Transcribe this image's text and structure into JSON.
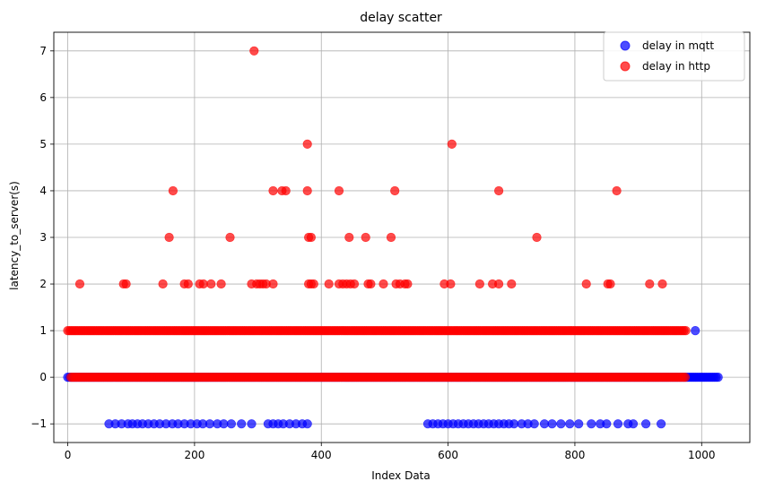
{
  "chart_data": {
    "type": "scatter",
    "title": "delay scatter",
    "xlabel": "Index Data",
    "ylabel": "latency_to_server(s)",
    "xlim": [
      -22,
      1076
    ],
    "ylim": [
      -1.4,
      7.4
    ],
    "xticks": [
      0,
      200,
      400,
      600,
      800,
      1000
    ],
    "yticks": [
      -1,
      0,
      1,
      2,
      3,
      4,
      5,
      6,
      7
    ],
    "grid": true,
    "legend_position": "top-right",
    "series": [
      {
        "name": "delay in mqtt",
        "color": "#0000ff",
        "alpha": 0.7,
        "runs": [
          {
            "from": 0,
            "to": 1026,
            "step": 3,
            "y": 0
          }
        ],
        "points": [
          {
            "x": 65,
            "y": -1
          },
          {
            "x": 75,
            "y": -1
          },
          {
            "x": 85,
            "y": -1
          },
          {
            "x": 95,
            "y": -1
          },
          {
            "x": 102,
            "y": -1
          },
          {
            "x": 110,
            "y": -1
          },
          {
            "x": 118,
            "y": -1
          },
          {
            "x": 127,
            "y": -1
          },
          {
            "x": 136,
            "y": -1
          },
          {
            "x": 145,
            "y": -1
          },
          {
            "x": 155,
            "y": -1
          },
          {
            "x": 165,
            "y": -1
          },
          {
            "x": 174,
            "y": -1
          },
          {
            "x": 184,
            "y": -1
          },
          {
            "x": 194,
            "y": -1
          },
          {
            "x": 204,
            "y": -1
          },
          {
            "x": 213,
            "y": -1
          },
          {
            "x": 224,
            "y": -1
          },
          {
            "x": 236,
            "y": -1
          },
          {
            "x": 246,
            "y": -1
          },
          {
            "x": 258,
            "y": -1
          },
          {
            "x": 274,
            "y": -1
          },
          {
            "x": 290,
            "y": -1
          },
          {
            "x": 316,
            "y": -1
          },
          {
            "x": 324,
            "y": -1
          },
          {
            "x": 332,
            "y": -1
          },
          {
            "x": 340,
            "y": -1
          },
          {
            "x": 350,
            "y": -1
          },
          {
            "x": 360,
            "y": -1
          },
          {
            "x": 370,
            "y": -1
          },
          {
            "x": 378,
            "y": -1
          },
          {
            "x": 568,
            "y": -1
          },
          {
            "x": 576,
            "y": -1
          },
          {
            "x": 584,
            "y": -1
          },
          {
            "x": 592,
            "y": -1
          },
          {
            "x": 600,
            "y": -1
          },
          {
            "x": 608,
            "y": -1
          },
          {
            "x": 616,
            "y": -1
          },
          {
            "x": 624,
            "y": -1
          },
          {
            "x": 632,
            "y": -1
          },
          {
            "x": 640,
            "y": -1
          },
          {
            "x": 648,
            "y": -1
          },
          {
            "x": 656,
            "y": -1
          },
          {
            "x": 664,
            "y": -1
          },
          {
            "x": 672,
            "y": -1
          },
          {
            "x": 680,
            "y": -1
          },
          {
            "x": 688,
            "y": -1
          },
          {
            "x": 696,
            "y": -1
          },
          {
            "x": 704,
            "y": -1
          },
          {
            "x": 716,
            "y": -1
          },
          {
            "x": 726,
            "y": -1
          },
          {
            "x": 736,
            "y": -1
          },
          {
            "x": 752,
            "y": -1
          },
          {
            "x": 764,
            "y": -1
          },
          {
            "x": 778,
            "y": -1
          },
          {
            "x": 792,
            "y": -1
          },
          {
            "x": 806,
            "y": -1
          },
          {
            "x": 826,
            "y": -1
          },
          {
            "x": 840,
            "y": -1
          },
          {
            "x": 850,
            "y": -1
          },
          {
            "x": 868,
            "y": -1
          },
          {
            "x": 884,
            "y": -1
          },
          {
            "x": 892,
            "y": -1
          },
          {
            "x": 912,
            "y": -1
          },
          {
            "x": 936,
            "y": -1
          },
          {
            "x": 990,
            "y": 1
          }
        ]
      },
      {
        "name": "delay in http",
        "color": "#ff0000",
        "alpha": 0.7,
        "runs": [
          {
            "from": 0,
            "to": 975,
            "step": 3,
            "y": 1
          },
          {
            "from": 5,
            "to": 975,
            "step": 3,
            "y": 0
          }
        ],
        "points": [
          {
            "x": 19,
            "y": 2
          },
          {
            "x": 88,
            "y": 2
          },
          {
            "x": 92,
            "y": 2
          },
          {
            "x": 150,
            "y": 2
          },
          {
            "x": 184,
            "y": 2
          },
          {
            "x": 190,
            "y": 2
          },
          {
            "x": 208,
            "y": 2
          },
          {
            "x": 214,
            "y": 2
          },
          {
            "x": 226,
            "y": 2
          },
          {
            "x": 242,
            "y": 2
          },
          {
            "x": 290,
            "y": 2
          },
          {
            "x": 298,
            "y": 2
          },
          {
            "x": 303,
            "y": 2
          },
          {
            "x": 308,
            "y": 2
          },
          {
            "x": 313,
            "y": 2
          },
          {
            "x": 324,
            "y": 2
          },
          {
            "x": 380,
            "y": 2
          },
          {
            "x": 384,
            "y": 2
          },
          {
            "x": 388,
            "y": 2
          },
          {
            "x": 412,
            "y": 2
          },
          {
            "x": 428,
            "y": 2
          },
          {
            "x": 434,
            "y": 2
          },
          {
            "x": 440,
            "y": 2
          },
          {
            "x": 446,
            "y": 2
          },
          {
            "x": 452,
            "y": 2
          },
          {
            "x": 474,
            "y": 2
          },
          {
            "x": 478,
            "y": 2
          },
          {
            "x": 498,
            "y": 2
          },
          {
            "x": 518,
            "y": 2
          },
          {
            "x": 524,
            "y": 2
          },
          {
            "x": 532,
            "y": 2
          },
          {
            "x": 536,
            "y": 2
          },
          {
            "x": 594,
            "y": 2
          },
          {
            "x": 604,
            "y": 2
          },
          {
            "x": 650,
            "y": 2
          },
          {
            "x": 670,
            "y": 2
          },
          {
            "x": 680,
            "y": 2
          },
          {
            "x": 700,
            "y": 2
          },
          {
            "x": 818,
            "y": 2
          },
          {
            "x": 852,
            "y": 2
          },
          {
            "x": 856,
            "y": 2
          },
          {
            "x": 918,
            "y": 2
          },
          {
            "x": 938,
            "y": 2
          },
          {
            "x": 160,
            "y": 3
          },
          {
            "x": 256,
            "y": 3
          },
          {
            "x": 380,
            "y": 3
          },
          {
            "x": 384,
            "y": 3
          },
          {
            "x": 444,
            "y": 3
          },
          {
            "x": 470,
            "y": 3
          },
          {
            "x": 510,
            "y": 3
          },
          {
            "x": 740,
            "y": 3
          },
          {
            "x": 166,
            "y": 4
          },
          {
            "x": 324,
            "y": 4
          },
          {
            "x": 338,
            "y": 4
          },
          {
            "x": 344,
            "y": 4
          },
          {
            "x": 378,
            "y": 4
          },
          {
            "x": 428,
            "y": 4
          },
          {
            "x": 516,
            "y": 4
          },
          {
            "x": 680,
            "y": 4
          },
          {
            "x": 866,
            "y": 4
          },
          {
            "x": 378,
            "y": 5
          },
          {
            "x": 606,
            "y": 5
          },
          {
            "x": 294,
            "y": 7
          }
        ]
      }
    ]
  }
}
